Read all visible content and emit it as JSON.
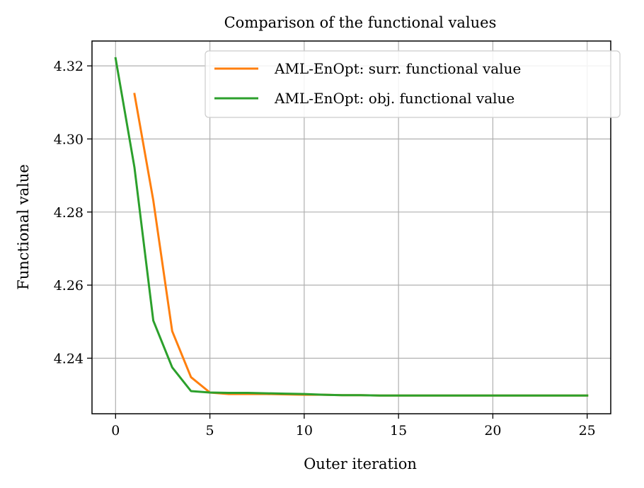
{
  "chart_data": {
    "type": "line",
    "title": "Comparison of the functional values",
    "xlabel": "Outer iteration",
    "ylabel": "Functional value",
    "xlim": [
      -1.25,
      26.25
    ],
    "ylim": [
      4.2248,
      4.3268
    ],
    "xticks": [
      0,
      5,
      10,
      15,
      20,
      25
    ],
    "yticks": [
      4.24,
      4.26,
      4.28,
      4.3,
      4.32
    ],
    "xtick_labels": [
      "0",
      "5",
      "10",
      "15",
      "20",
      "25"
    ],
    "ytick_labels": [
      "4.24",
      "4.26",
      "4.28",
      "4.30",
      "4.32"
    ],
    "grid": true,
    "legend_position": "top-right",
    "series": [
      {
        "name": "AML-EnOpt: surr. functional value",
        "color": "#ff7f0e",
        "x": [
          1,
          2,
          3,
          4,
          5,
          6,
          7,
          8,
          9,
          10,
          11,
          12,
          13,
          14,
          15,
          16,
          17,
          18,
          19,
          20,
          21,
          22,
          23,
          24,
          25
        ],
        "y": [
          4.3123,
          4.2832,
          4.2474,
          4.2348,
          4.2306,
          4.2302,
          4.2302,
          4.2302,
          4.2301,
          4.23,
          4.23,
          4.2299,
          4.2299,
          4.2298,
          4.2298,
          4.2298,
          4.2298,
          4.2298,
          4.2298,
          4.2298,
          4.2298,
          4.2298,
          4.2298,
          4.2298,
          4.2298
        ]
      },
      {
        "name": "AML-EnOpt: obj. functional value",
        "color": "#2ca02c",
        "x": [
          0,
          1,
          2,
          3,
          4,
          5,
          6,
          7,
          8,
          9,
          10,
          11,
          12,
          13,
          14,
          15,
          16,
          17,
          18,
          19,
          20,
          21,
          22,
          23,
          24,
          25
        ],
        "y": [
          4.3221,
          4.2922,
          4.2503,
          4.2375,
          4.231,
          4.2306,
          4.2305,
          4.2305,
          4.2304,
          4.2303,
          4.2302,
          4.23,
          4.2299,
          4.2299,
          4.2298,
          4.2298,
          4.2298,
          4.2298,
          4.2298,
          4.2298,
          4.2298,
          4.2298,
          4.2298,
          4.2298,
          4.2298,
          4.2298
        ]
      }
    ]
  }
}
